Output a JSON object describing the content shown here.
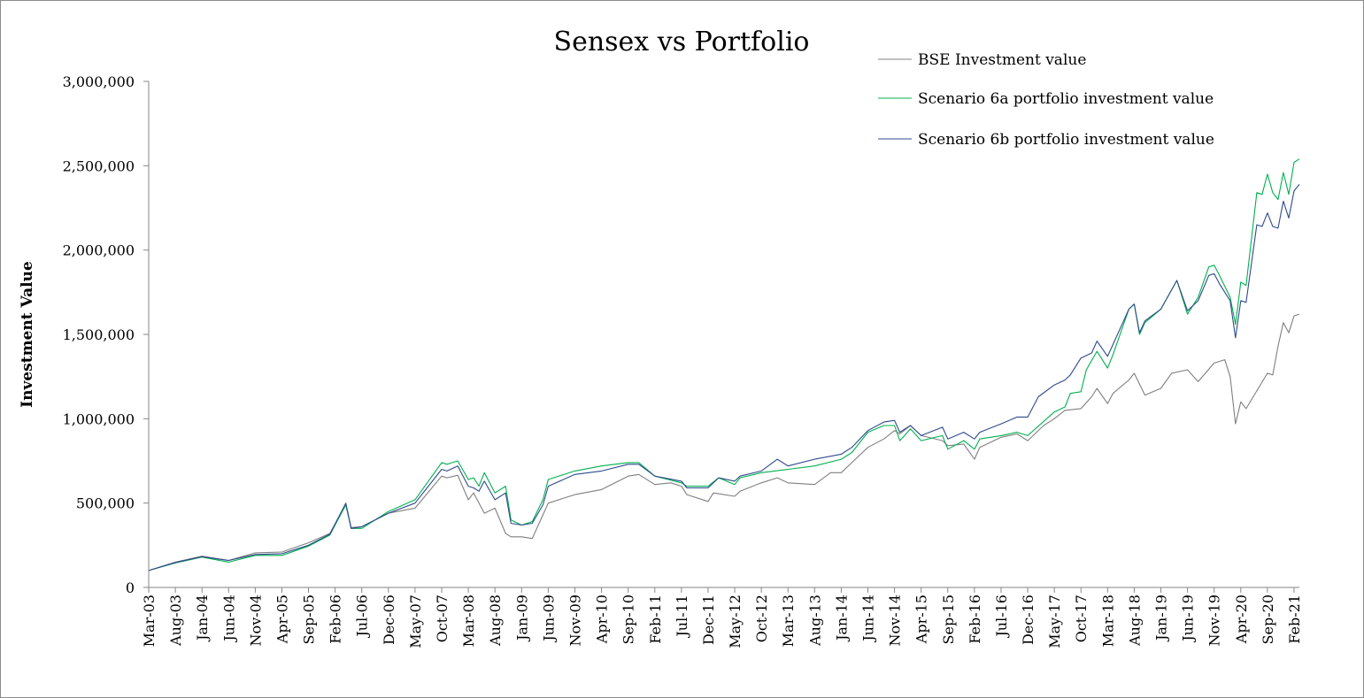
{
  "chart_data": {
    "type": "line",
    "title": "Sensex vs Portfolio",
    "ylabel": "Investment Value",
    "xlabel": "",
    "ylim": [
      0,
      3000000
    ],
    "yticks": [
      0,
      500000,
      1000000,
      1500000,
      2000000,
      2500000,
      3000000
    ],
    "ytick_labels": [
      "0",
      "500,000",
      "1,000,000",
      "1,500,000",
      "2,000,000",
      "2,500,000",
      "3,000,000"
    ],
    "x_start": "Mar-03",
    "x_end": "Mar-21",
    "xtick_labels": [
      "Mar-03",
      "Aug-03",
      "Jan-04",
      "Jun-04",
      "Nov-04",
      "Apr-05",
      "Sep-05",
      "Feb-06",
      "Jul-06",
      "Dec-06",
      "May-07",
      "Oct-07",
      "Mar-08",
      "Aug-08",
      "Jan-09",
      "Jun-09",
      "Nov-09",
      "Apr-10",
      "Sep-10",
      "Feb-11",
      "Jul-11",
      "Dec-11",
      "May-12",
      "Oct-12",
      "Mar-13",
      "Aug-13",
      "Jan-14",
      "Jun-14",
      "Nov-14",
      "Apr-15",
      "Sep-15",
      "Feb-16",
      "Jul-16",
      "Dec-16",
      "May-17",
      "Oct-17",
      "Mar-18",
      "Aug-18",
      "Jan-19",
      "Jun-19",
      "Nov-19",
      "Apr-20",
      "Sep-20",
      "Feb-21"
    ],
    "grid": false,
    "legend_position": "top-right",
    "series": [
      {
        "name": "BSE Investment value",
        "color": "#7f7f7f",
        "points": [
          [
            "Mar-03",
            100000
          ],
          [
            "Aug-03",
            150000
          ],
          [
            "Jan-04",
            185000
          ],
          [
            "Jun-04",
            160000
          ],
          [
            "Nov-04",
            205000
          ],
          [
            "Apr-05",
            210000
          ],
          [
            "Sep-05",
            265000
          ],
          [
            "Jan-06",
            320000
          ],
          [
            "Apr-06",
            490000
          ],
          [
            "May-06",
            355000
          ],
          [
            "Jul-06",
            360000
          ],
          [
            "Dec-06",
            440000
          ],
          [
            "May-07",
            470000
          ],
          [
            "Oct-07",
            660000
          ],
          [
            "Nov-07",
            650000
          ],
          [
            "Jan-08",
            665000
          ],
          [
            "Mar-08",
            520000
          ],
          [
            "Apr-08",
            560000
          ],
          [
            "Jun-08",
            440000
          ],
          [
            "Aug-08",
            470000
          ],
          [
            "Oct-08",
            320000
          ],
          [
            "Nov-08",
            300000
          ],
          [
            "Jan-09",
            300000
          ],
          [
            "Mar-09",
            290000
          ],
          [
            "May-09",
            430000
          ],
          [
            "Jun-09",
            500000
          ],
          [
            "Nov-09",
            550000
          ],
          [
            "Apr-10",
            580000
          ],
          [
            "Sep-10",
            660000
          ],
          [
            "Nov-10",
            670000
          ],
          [
            "Feb-11",
            610000
          ],
          [
            "May-11",
            620000
          ],
          [
            "Jul-11",
            600000
          ],
          [
            "Aug-11",
            550000
          ],
          [
            "Dec-11",
            510000
          ],
          [
            "Jan-12",
            560000
          ],
          [
            "May-12",
            540000
          ],
          [
            "Jun-12",
            570000
          ],
          [
            "Oct-12",
            620000
          ],
          [
            "Jan-13",
            650000
          ],
          [
            "Mar-13",
            620000
          ],
          [
            "Aug-13",
            610000
          ],
          [
            "Nov-13",
            680000
          ],
          [
            "Jan-14",
            680000
          ],
          [
            "Mar-14",
            740000
          ],
          [
            "Jun-14",
            830000
          ],
          [
            "Sep-14",
            880000
          ],
          [
            "Nov-14",
            930000
          ],
          [
            "Dec-14",
            910000
          ],
          [
            "Feb-15",
            960000
          ],
          [
            "Apr-15",
            900000
          ],
          [
            "Aug-15",
            870000
          ],
          [
            "Sep-15",
            840000
          ],
          [
            "Dec-15",
            850000
          ],
          [
            "Feb-16",
            760000
          ],
          [
            "Mar-16",
            830000
          ],
          [
            "Jul-16",
            890000
          ],
          [
            "Oct-16",
            910000
          ],
          [
            "Dec-16",
            870000
          ],
          [
            "Mar-17",
            960000
          ],
          [
            "May-17",
            1000000
          ],
          [
            "Jul-17",
            1050000
          ],
          [
            "Oct-17",
            1060000
          ],
          [
            "Dec-17",
            1130000
          ],
          [
            "Jan-18",
            1180000
          ],
          [
            "Mar-18",
            1090000
          ],
          [
            "Apr-18",
            1150000
          ],
          [
            "Jul-18",
            1230000
          ],
          [
            "Aug-18",
            1270000
          ],
          [
            "Oct-18",
            1140000
          ],
          [
            "Jan-19",
            1180000
          ],
          [
            "Mar-19",
            1270000
          ],
          [
            "Jun-19",
            1290000
          ],
          [
            "Aug-19",
            1220000
          ],
          [
            "Nov-19",
            1330000
          ],
          [
            "Jan-20",
            1350000
          ],
          [
            "Feb-20",
            1250000
          ],
          [
            "Mar-20",
            970000
          ],
          [
            "Apr-20",
            1100000
          ],
          [
            "May-20",
            1060000
          ],
          [
            "Sep-20",
            1270000
          ],
          [
            "Oct-20",
            1260000
          ],
          [
            "Nov-20",
            1430000
          ],
          [
            "Dec-20",
            1570000
          ],
          [
            "Jan-21",
            1510000
          ],
          [
            "Feb-21",
            1610000
          ],
          [
            "Mar-21",
            1620000
          ]
        ]
      },
      {
        "name": "Scenario 6a portfolio investment value",
        "color": "#00b050",
        "points": [
          [
            "Mar-03",
            100000
          ],
          [
            "Aug-03",
            145000
          ],
          [
            "Jan-04",
            180000
          ],
          [
            "Jun-04",
            150000
          ],
          [
            "Nov-04",
            190000
          ],
          [
            "Apr-05",
            190000
          ],
          [
            "Sep-05",
            245000
          ],
          [
            "Jan-06",
            310000
          ],
          [
            "Apr-06",
            490000
          ],
          [
            "May-06",
            350000
          ],
          [
            "Jul-06",
            350000
          ],
          [
            "Dec-06",
            450000
          ],
          [
            "May-07",
            520000
          ],
          [
            "Oct-07",
            740000
          ],
          [
            "Nov-07",
            730000
          ],
          [
            "Jan-08",
            750000
          ],
          [
            "Mar-08",
            640000
          ],
          [
            "Apr-08",
            650000
          ],
          [
            "May-08",
            600000
          ],
          [
            "Jun-08",
            680000
          ],
          [
            "Aug-08",
            560000
          ],
          [
            "Oct-08",
            600000
          ],
          [
            "Nov-08",
            400000
          ],
          [
            "Jan-09",
            370000
          ],
          [
            "Mar-09",
            390000
          ],
          [
            "May-09",
            520000
          ],
          [
            "Jun-09",
            640000
          ],
          [
            "Nov-09",
            690000
          ],
          [
            "Apr-10",
            720000
          ],
          [
            "Sep-10",
            740000
          ],
          [
            "Nov-10",
            740000
          ],
          [
            "Feb-11",
            660000
          ],
          [
            "Jul-11",
            620000
          ],
          [
            "Aug-11",
            600000
          ],
          [
            "Dec-11",
            600000
          ],
          [
            "Feb-12",
            650000
          ],
          [
            "May-12",
            610000
          ],
          [
            "Jun-12",
            650000
          ],
          [
            "Oct-12",
            680000
          ],
          [
            "Mar-13",
            700000
          ],
          [
            "Aug-13",
            720000
          ],
          [
            "Jan-14",
            760000
          ],
          [
            "Mar-14",
            800000
          ],
          [
            "Jun-14",
            920000
          ],
          [
            "Sep-14",
            960000
          ],
          [
            "Nov-14",
            960000
          ],
          [
            "Dec-14",
            870000
          ],
          [
            "Feb-15",
            940000
          ],
          [
            "Apr-15",
            870000
          ],
          [
            "Aug-15",
            900000
          ],
          [
            "Sep-15",
            820000
          ],
          [
            "Dec-15",
            870000
          ],
          [
            "Feb-16",
            820000
          ],
          [
            "Mar-16",
            880000
          ],
          [
            "Jul-16",
            900000
          ],
          [
            "Oct-16",
            920000
          ],
          [
            "Dec-16",
            900000
          ],
          [
            "May-17",
            1040000
          ],
          [
            "Jul-17",
            1070000
          ],
          [
            "Aug-17",
            1150000
          ],
          [
            "Oct-17",
            1160000
          ],
          [
            "Nov-17",
            1290000
          ],
          [
            "Jan-18",
            1400000
          ],
          [
            "Mar-18",
            1300000
          ],
          [
            "Apr-18",
            1380000
          ],
          [
            "Jul-18",
            1650000
          ],
          [
            "Aug-18",
            1680000
          ],
          [
            "Sep-18",
            1500000
          ],
          [
            "Oct-18",
            1570000
          ],
          [
            "Jan-19",
            1650000
          ],
          [
            "Apr-19",
            1820000
          ],
          [
            "Jun-19",
            1620000
          ],
          [
            "Aug-19",
            1720000
          ],
          [
            "Oct-19",
            1900000
          ],
          [
            "Nov-19",
            1910000
          ],
          [
            "Dec-19",
            1850000
          ],
          [
            "Feb-20",
            1720000
          ],
          [
            "Mar-20",
            1560000
          ],
          [
            "Apr-20",
            1810000
          ],
          [
            "May-20",
            1790000
          ],
          [
            "Jul-20",
            2340000
          ],
          [
            "Aug-20",
            2330000
          ],
          [
            "Sep-20",
            2450000
          ],
          [
            "Oct-20",
            2340000
          ],
          [
            "Nov-20",
            2300000
          ],
          [
            "Dec-20",
            2460000
          ],
          [
            "Jan-21",
            2330000
          ],
          [
            "Feb-21",
            2520000
          ],
          [
            "Mar-21",
            2540000
          ]
        ]
      },
      {
        "name": "Scenario 6b portfolio investment value",
        "color": "#2e4a8b",
        "points": [
          [
            "Mar-03",
            100000
          ],
          [
            "Aug-03",
            148000
          ],
          [
            "Jan-04",
            182000
          ],
          [
            "Jun-04",
            160000
          ],
          [
            "Nov-04",
            195000
          ],
          [
            "Apr-05",
            200000
          ],
          [
            "Sep-05",
            250000
          ],
          [
            "Jan-06",
            315000
          ],
          [
            "Apr-06",
            500000
          ],
          [
            "May-06",
            350000
          ],
          [
            "Jul-06",
            360000
          ],
          [
            "Dec-06",
            440000
          ],
          [
            "May-07",
            500000
          ],
          [
            "Oct-07",
            700000
          ],
          [
            "Nov-07",
            690000
          ],
          [
            "Jan-08",
            720000
          ],
          [
            "Mar-08",
            600000
          ],
          [
            "Apr-08",
            590000
          ],
          [
            "May-08",
            570000
          ],
          [
            "Jun-08",
            630000
          ],
          [
            "Aug-08",
            520000
          ],
          [
            "Oct-08",
            560000
          ],
          [
            "Nov-08",
            380000
          ],
          [
            "Jan-09",
            370000
          ],
          [
            "Mar-09",
            380000
          ],
          [
            "May-09",
            490000
          ],
          [
            "Jun-09",
            600000
          ],
          [
            "Nov-09",
            670000
          ],
          [
            "Apr-10",
            690000
          ],
          [
            "Sep-10",
            730000
          ],
          [
            "Nov-10",
            730000
          ],
          [
            "Feb-11",
            660000
          ],
          [
            "Jul-11",
            630000
          ],
          [
            "Aug-11",
            590000
          ],
          [
            "Dec-11",
            590000
          ],
          [
            "Feb-12",
            650000
          ],
          [
            "May-12",
            630000
          ],
          [
            "Jun-12",
            660000
          ],
          [
            "Oct-12",
            690000
          ],
          [
            "Jan-13",
            760000
          ],
          [
            "Mar-13",
            720000
          ],
          [
            "Aug-13",
            760000
          ],
          [
            "Jan-14",
            790000
          ],
          [
            "Mar-14",
            830000
          ],
          [
            "Jun-14",
            930000
          ],
          [
            "Sep-14",
            980000
          ],
          [
            "Nov-14",
            990000
          ],
          [
            "Dec-14",
            920000
          ],
          [
            "Feb-15",
            960000
          ],
          [
            "Apr-15",
            900000
          ],
          [
            "Aug-15",
            950000
          ],
          [
            "Sep-15",
            880000
          ],
          [
            "Dec-15",
            920000
          ],
          [
            "Feb-16",
            880000
          ],
          [
            "Mar-16",
            920000
          ],
          [
            "Jul-16",
            970000
          ],
          [
            "Oct-16",
            1010000
          ],
          [
            "Dec-16",
            1010000
          ],
          [
            "Feb-17",
            1130000
          ],
          [
            "May-17",
            1200000
          ],
          [
            "Jul-17",
            1230000
          ],
          [
            "Aug-17",
            1260000
          ],
          [
            "Oct-17",
            1360000
          ],
          [
            "Dec-17",
            1390000
          ],
          [
            "Jan-18",
            1460000
          ],
          [
            "Mar-18",
            1370000
          ],
          [
            "Apr-18",
            1440000
          ],
          [
            "Jul-18",
            1650000
          ],
          [
            "Aug-18",
            1680000
          ],
          [
            "Sep-18",
            1510000
          ],
          [
            "Oct-18",
            1580000
          ],
          [
            "Jan-19",
            1650000
          ],
          [
            "Apr-19",
            1820000
          ],
          [
            "Jun-19",
            1640000
          ],
          [
            "Aug-19",
            1700000
          ],
          [
            "Oct-19",
            1850000
          ],
          [
            "Nov-19",
            1860000
          ],
          [
            "Dec-19",
            1800000
          ],
          [
            "Feb-20",
            1700000
          ],
          [
            "Mar-20",
            1480000
          ],
          [
            "Apr-20",
            1700000
          ],
          [
            "May-20",
            1690000
          ],
          [
            "Jul-20",
            2150000
          ],
          [
            "Aug-20",
            2140000
          ],
          [
            "Sep-20",
            2220000
          ],
          [
            "Oct-20",
            2140000
          ],
          [
            "Nov-20",
            2130000
          ],
          [
            "Dec-20",
            2290000
          ],
          [
            "Jan-21",
            2190000
          ],
          [
            "Feb-21",
            2350000
          ],
          [
            "Mar-21",
            2390000
          ]
        ]
      }
    ]
  }
}
